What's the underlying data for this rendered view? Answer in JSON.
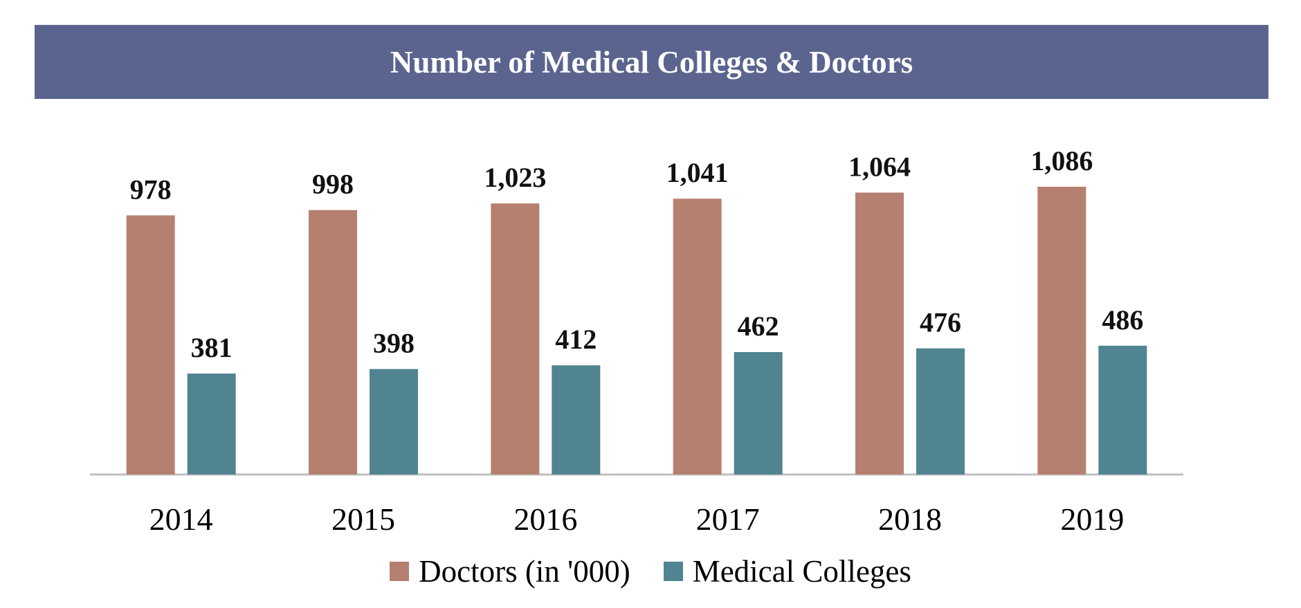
{
  "chart_data": {
    "type": "bar",
    "title": "Number of Medical Colleges & Doctors",
    "categories": [
      "2014",
      "2015",
      "2016",
      "2017",
      "2018",
      "2019"
    ],
    "series": [
      {
        "name": "Doctors (in '000)",
        "values": [
          978,
          998,
          1023,
          1041,
          1064,
          1086
        ],
        "labels": [
          "978",
          "998",
          "1,023",
          "1,041",
          "1,064",
          "1,086"
        ],
        "color": "#b5806f"
      },
      {
        "name": "Medical Colleges",
        "values": [
          381,
          398,
          412,
          462,
          476,
          486
        ],
        "labels": [
          "381",
          "398",
          "412",
          "462",
          "476",
          "486"
        ],
        "color": "#4f8490"
      }
    ],
    "xlabel": "",
    "ylabel": "",
    "ylim": [
      0,
      1200
    ],
    "grid": false,
    "legend": "bottom-center",
    "colors": {
      "title_background": "#5a648f",
      "axis": "#bfbfbf"
    }
  }
}
